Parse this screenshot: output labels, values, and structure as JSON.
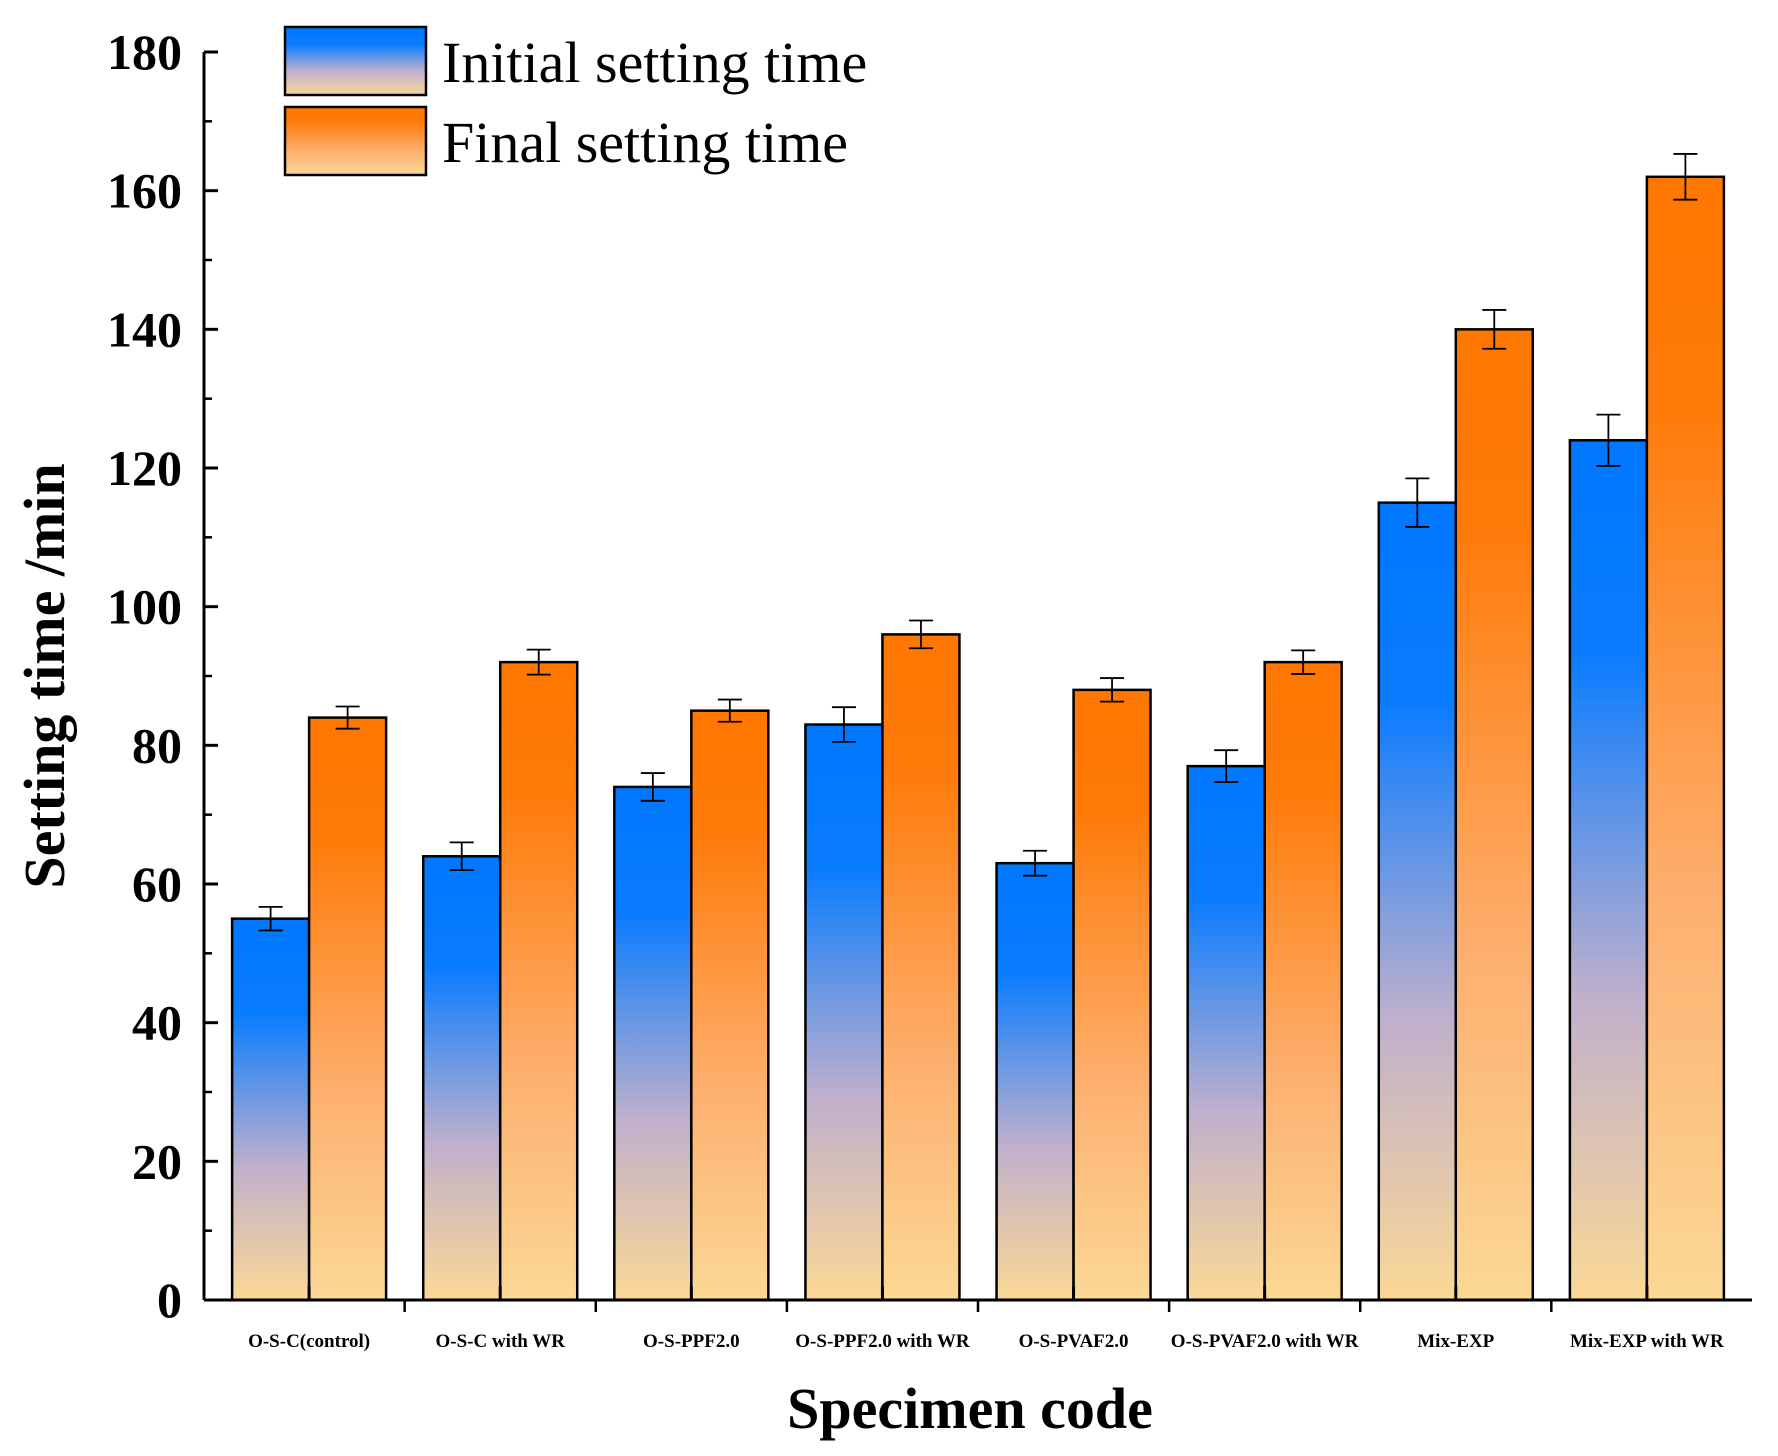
{
  "chart_data": {
    "type": "bar",
    "xlabel": "Specimen code",
    "ylabel": "Setting time /min",
    "ylim": [
      0,
      180
    ],
    "yticks": [
      0,
      20,
      40,
      60,
      80,
      100,
      120,
      140,
      160,
      180
    ],
    "grid": false,
    "legend_position": "top-left",
    "categories": [
      "O-S-C(control)",
      "O-S-C with WR",
      "O-S-PPF2.0",
      "O-S-PPF2.0 with WR",
      "O-S-PVAF2.0",
      "O-S-PVAF2.0 with WR",
      "Mix-EXP",
      "Mix-EXP with WR"
    ],
    "series": [
      {
        "name": "Initial setting time",
        "values": [
          55,
          64,
          74,
          83,
          63,
          77,
          115,
          124
        ],
        "errors": [
          1.7,
          2.0,
          2.0,
          2.5,
          1.8,
          2.3,
          3.5,
          3.7
        ],
        "colors": {
          "top": "#0077ff",
          "bottom": "#fbd895"
        }
      },
      {
        "name": "Final setting time",
        "values": [
          84,
          92,
          85,
          96,
          88,
          92,
          140,
          162
        ],
        "errors": [
          1.6,
          1.8,
          1.6,
          2.0,
          1.7,
          1.7,
          2.8,
          3.3
        ],
        "colors": {
          "top": "#ff7700",
          "bottom": "#fbd895"
        }
      }
    ]
  }
}
